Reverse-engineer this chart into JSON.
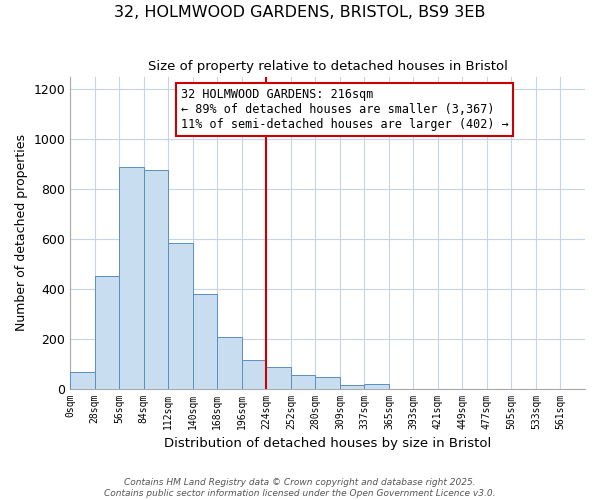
{
  "title": "32, HOLMWOOD GARDENS, BRISTOL, BS9 3EB",
  "subtitle": "Size of property relative to detached houses in Bristol",
  "xlabel": "Distribution of detached houses by size in Bristol",
  "ylabel": "Number of detached properties",
  "bin_labels": [
    "0sqm",
    "28sqm",
    "56sqm",
    "84sqm",
    "112sqm",
    "140sqm",
    "168sqm",
    "196sqm",
    "224sqm",
    "252sqm",
    "280sqm",
    "309sqm",
    "337sqm",
    "365sqm",
    "393sqm",
    "421sqm",
    "449sqm",
    "477sqm",
    "505sqm",
    "533sqm",
    "561sqm"
  ],
  "bar_values": [
    65,
    450,
    890,
    875,
    585,
    380,
    205,
    115,
    85,
    55,
    45,
    15,
    20,
    0,
    0,
    0,
    0,
    0,
    0,
    0
  ],
  "bar_color": "#c8ddf0",
  "bar_edge_color": "#5a8fc0",
  "vline_x_bin": 8,
  "vline_color": "#cc0000",
  "annotation_text": "32 HOLMWOOD GARDENS: 216sqm\n← 89% of detached houses are smaller (3,367)\n11% of semi-detached houses are larger (402) →",
  "annotation_box_color": "#ffffff",
  "annotation_box_edge": "#cc0000",
  "ylim": [
    0,
    1250
  ],
  "yticks": [
    0,
    200,
    400,
    600,
    800,
    1000,
    1200
  ],
  "footer_line1": "Contains HM Land Registry data © Crown copyright and database right 2025.",
  "footer_line2": "Contains public sector information licensed under the Open Government Licence v3.0.",
  "background_color": "#ffffff",
  "grid_color": "#c8d4e4",
  "bin_width": 28
}
